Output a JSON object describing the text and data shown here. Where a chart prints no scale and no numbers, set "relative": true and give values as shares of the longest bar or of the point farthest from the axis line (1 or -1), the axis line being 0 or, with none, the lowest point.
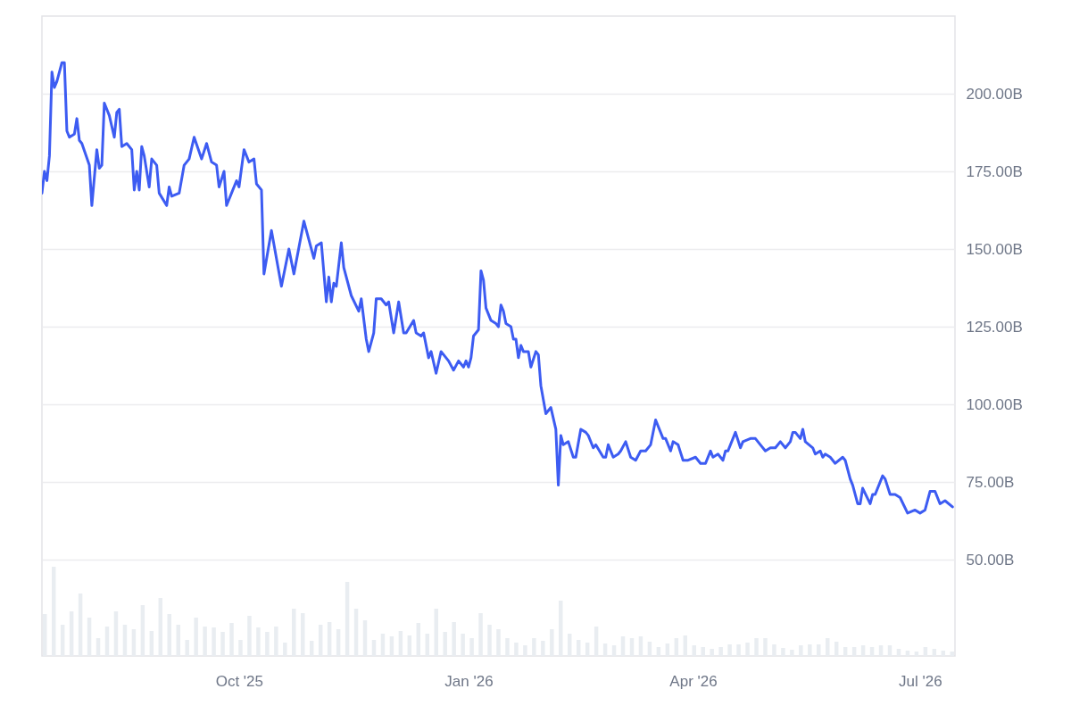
{
  "chart_data": [
    {
      "type": "line",
      "xlim": [
        "2025-07-14",
        "2026-07-15"
      ],
      "xticks": [
        {
          "value": "2025-10-01",
          "label": "Oct '25"
        },
        {
          "value": "2026-01-01",
          "label": "Jan '26"
        },
        {
          "value": "2026-04-01",
          "label": "Apr '26"
        },
        {
          "value": "2026-07-01",
          "label": "Jul '26"
        }
      ],
      "ylim": [
        19,
        225
      ],
      "yticks": [
        {
          "value": 50,
          "label": "50.00B"
        },
        {
          "value": 75,
          "label": "75.00B"
        },
        {
          "value": 100,
          "label": "100.00B"
        },
        {
          "value": 125,
          "label": "125.00B"
        },
        {
          "value": 150,
          "label": "150.00B"
        },
        {
          "value": 175,
          "label": "175.00B"
        },
        {
          "value": 200,
          "label": "200.00B"
        }
      ],
      "grid": "y",
      "marker": "none",
      "line_style": "solid",
      "x": [
        "2025-07-14",
        "2025-07-15",
        "2025-07-16",
        "2025-07-17",
        "2025-07-18",
        "2025-07-19",
        "2025-07-20",
        "2025-07-22",
        "2025-07-23",
        "2025-07-24",
        "2025-07-25",
        "2025-07-27",
        "2025-07-28",
        "2025-07-29",
        "2025-07-30",
        "2025-08-02",
        "2025-08-03",
        "2025-08-05",
        "2025-08-06",
        "2025-08-07",
        "2025-08-08",
        "2025-08-10",
        "2025-08-12",
        "2025-08-13",
        "2025-08-14",
        "2025-08-15",
        "2025-08-17",
        "2025-08-19",
        "2025-08-20",
        "2025-08-21",
        "2025-08-22",
        "2025-08-23",
        "2025-08-24",
        "2025-08-26",
        "2025-08-27",
        "2025-08-29",
        "2025-08-30",
        "2025-09-02",
        "2025-09-03",
        "2025-09-04",
        "2025-09-07",
        "2025-09-09",
        "2025-09-11",
        "2025-09-13",
        "2025-09-16",
        "2025-09-18",
        "2025-09-20",
        "2025-09-22",
        "2025-09-23",
        "2025-09-25",
        "2025-09-26",
        "2025-09-28",
        "2025-09-30",
        "2025-10-01",
        "2025-10-03",
        "2025-10-05",
        "2025-10-07",
        "2025-10-08",
        "2025-10-10",
        "2025-10-11",
        "2025-10-14",
        "2025-10-18",
        "2025-10-21",
        "2025-10-23",
        "2025-10-27",
        "2025-10-31",
        "2025-11-01",
        "2025-11-03",
        "2025-11-05",
        "2025-11-06",
        "2025-11-07",
        "2025-11-08",
        "2025-11-09",
        "2025-11-11",
        "2025-11-12",
        "2025-11-15",
        "2025-11-18",
        "2025-11-19",
        "2025-11-21",
        "2025-11-22",
        "2025-11-24",
        "2025-11-25",
        "2025-11-27",
        "2025-11-29",
        "2025-11-30",
        "2025-12-02",
        "2025-12-04",
        "2025-12-06",
        "2025-12-07",
        "2025-12-10",
        "2025-12-11",
        "2025-12-13",
        "2025-12-14",
        "2025-12-16",
        "2025-12-17",
        "2025-12-19",
        "2025-12-21",
        "2025-12-22",
        "2025-12-24",
        "2025-12-26",
        "2025-12-28",
        "2025-12-30",
        "2025-12-31",
        "2026-01-01",
        "2026-01-02",
        "2026-01-03",
        "2026-01-05",
        "2026-01-06",
        "2026-01-07",
        "2026-01-08",
        "2026-01-10",
        "2026-01-12",
        "2026-01-13",
        "2026-01-14",
        "2026-01-15",
        "2026-01-16",
        "2026-01-18",
        "2026-01-19",
        "2026-01-20",
        "2026-01-21",
        "2026-01-22",
        "2026-01-23",
        "2026-01-25",
        "2026-01-26",
        "2026-01-28",
        "2026-01-29",
        "2026-01-30",
        "2026-02-01",
        "2026-02-03",
        "2026-02-05",
        "2026-02-06",
        "2026-02-07",
        "2026-02-08",
        "2026-02-10",
        "2026-02-12",
        "2026-02-13",
        "2026-02-15",
        "2026-02-17",
        "2026-02-18",
        "2026-02-20",
        "2026-02-21",
        "2026-02-24",
        "2026-02-25",
        "2026-02-26",
        "2026-02-28",
        "2026-03-02",
        "2026-03-03",
        "2026-03-05",
        "2026-03-07",
        "2026-03-09",
        "2026-03-11",
        "2026-03-13",
        "2026-03-15",
        "2026-03-17",
        "2026-03-20",
        "2026-03-21",
        "2026-03-23",
        "2026-03-24",
        "2026-03-26",
        "2026-03-28",
        "2026-03-30",
        "2026-04-02",
        "2026-04-04",
        "2026-04-06",
        "2026-04-08",
        "2026-04-09",
        "2026-04-11",
        "2026-04-13",
        "2026-04-14",
        "2026-04-15",
        "2026-04-18",
        "2026-04-20",
        "2026-04-21",
        "2026-04-24",
        "2026-04-26",
        "2026-04-28",
        "2026-04-30",
        "2026-05-02",
        "2026-05-04",
        "2026-05-06",
        "2026-05-08",
        "2026-05-10",
        "2026-05-11",
        "2026-05-12",
        "2026-05-14",
        "2026-05-15",
        "2026-05-16",
        "2026-05-19",
        "2026-05-20",
        "2026-05-22",
        "2026-05-23",
        "2026-05-24",
        "2026-05-26",
        "2026-05-28",
        "2026-05-31",
        "2026-06-01",
        "2026-06-03",
        "2026-06-04",
        "2026-06-06",
        "2026-06-07",
        "2026-06-08",
        "2026-06-11",
        "2026-06-12",
        "2026-06-13",
        "2026-06-16",
        "2026-06-17",
        "2026-06-19",
        "2026-06-21",
        "2026-06-23",
        "2026-06-26",
        "2026-06-29",
        "2026-07-01",
        "2026-07-03",
        "2026-07-05",
        "2026-07-07",
        "2026-07-09",
        "2026-07-11",
        "2026-07-14"
      ],
      "series": [
        {
          "color": "#3d5cf2",
          "values": [
            168,
            175,
            172,
            180,
            207,
            202,
            204,
            210,
            210,
            188,
            186,
            187,
            192,
            185,
            184,
            177,
            164,
            182,
            176,
            177,
            197,
            193,
            186,
            194,
            195,
            183,
            184,
            182,
            169,
            175,
            169,
            183,
            180,
            170,
            179,
            177,
            168,
            164,
            170,
            167,
            168,
            177,
            179,
            186,
            179,
            184,
            178,
            177,
            170,
            175,
            164,
            168,
            172,
            170,
            182,
            178,
            179,
            171,
            169,
            142,
            156,
            138,
            150,
            142,
            159,
            147,
            151,
            152,
            133,
            141,
            133,
            139,
            138,
            152,
            144,
            135,
            130,
            134,
            121,
            117,
            123,
            134,
            134,
            132,
            133,
            123,
            133,
            123,
            123,
            127,
            123,
            122,
            123,
            115,
            117,
            110,
            117,
            116,
            114,
            111,
            114,
            112,
            114,
            112,
            115,
            122,
            124,
            143,
            140,
            131,
            127,
            126,
            125,
            132,
            130,
            126,
            125,
            121,
            121,
            115,
            119,
            117,
            117,
            112,
            117,
            116,
            106,
            97,
            99,
            92,
            74,
            90,
            87,
            88,
            83,
            83,
            92,
            91,
            90,
            86,
            87,
            83,
            83,
            87,
            83,
            84,
            85,
            88,
            83,
            82,
            85,
            85,
            87,
            95,
            89,
            89,
            85,
            88,
            87,
            82,
            82,
            83,
            81,
            81,
            85,
            83,
            84,
            82,
            85,
            85,
            91,
            86,
            88,
            89,
            89,
            87,
            85,
            86,
            86,
            88,
            86,
            88,
            91,
            91,
            89,
            92,
            88,
            86,
            84,
            85,
            83,
            84,
            83,
            81,
            83,
            82,
            76,
            74,
            68,
            68,
            73,
            68,
            71,
            71,
            77,
            76,
            71,
            71,
            70,
            65,
            66,
            65,
            66,
            72,
            72,
            68,
            69,
            67
          ]
        }
      ]
    },
    {
      "type": "bar",
      "relative": true,
      "categories": [
        null,
        null,
        null,
        null,
        null,
        null,
        null,
        null,
        null,
        null,
        null,
        null,
        null,
        null,
        null,
        null,
        null,
        null,
        null,
        null,
        null,
        null,
        null,
        null,
        null,
        null,
        null,
        null,
        null,
        null,
        null,
        null,
        null,
        null,
        null,
        null,
        null,
        null,
        null,
        null,
        null,
        null,
        null,
        null,
        null,
        null,
        null,
        null,
        null,
        null,
        null,
        null,
        null,
        null,
        null,
        null,
        null,
        null,
        null,
        null,
        null,
        null,
        null,
        null,
        null,
        null,
        null,
        null,
        null,
        null,
        null,
        null,
        null,
        null,
        null,
        null,
        null,
        null,
        null,
        null,
        null,
        null,
        null,
        null,
        null,
        null,
        null,
        null,
        null,
        null,
        null,
        null,
        null,
        null,
        null,
        null,
        null,
        null,
        null,
        null,
        null,
        null,
        null
      ],
      "series": [
        {
          "color": "#e9edf1",
          "values": [
            0.47,
            1.0,
            0.35,
            0.5,
            0.7,
            0.43,
            0.2,
            0.33,
            0.5,
            0.35,
            0.3,
            0.57,
            0.28,
            0.65,
            0.47,
            0.35,
            0.18,
            0.43,
            0.33,
            0.32,
            0.27,
            0.37,
            0.18,
            0.45,
            0.32,
            0.27,
            0.33,
            0.15,
            0.53,
            0.48,
            0.17,
            0.35,
            0.38,
            0.3,
            0.83,
            0.53,
            0.4,
            0.18,
            0.25,
            0.22,
            0.28,
            0.23,
            0.37,
            0.25,
            0.53,
            0.27,
            0.38,
            0.25,
            0.2,
            0.48,
            0.35,
            0.3,
            0.2,
            0.15,
            0.12,
            0.2,
            0.17,
            0.3,
            0.62,
            0.25,
            0.18,
            0.15,
            0.33,
            0.14,
            0.12,
            0.22,
            0.2,
            0.22,
            0.16,
            0.1,
            0.14,
            0.2,
            0.23,
            0.12,
            0.1,
            0.08,
            0.1,
            0.13,
            0.13,
            0.15,
            0.2,
            0.2,
            0.13,
            0.09,
            0.07,
            0.12,
            0.13,
            0.13,
            0.2,
            0.16,
            0.1,
            0.1,
            0.12,
            0.1,
            0.12,
            0.12,
            0.08,
            0.06,
            0.05,
            0.1,
            0.08,
            0.06,
            0.05
          ]
        }
      ]
    }
  ]
}
